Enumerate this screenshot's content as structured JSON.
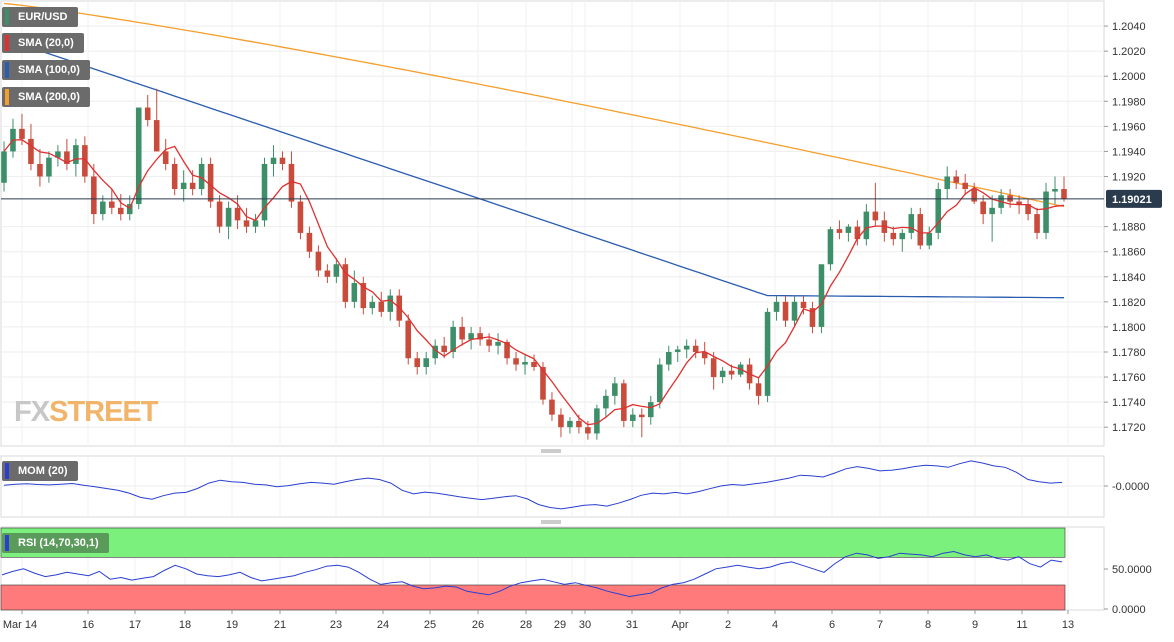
{
  "chart_data": [
    {
      "type": "candlestick",
      "title": "EUR/USD",
      "legend": [
        {
          "label": "SMA (20,0)",
          "color": "#e03030"
        },
        {
          "label": "SMA (100,0)",
          "color": "#2a5db0"
        },
        {
          "label": "SMA (200,0)",
          "color": "#f59e2b"
        }
      ],
      "y_ticks": [
        "1.2040",
        "1.2020",
        "1.2000",
        "1.1980",
        "1.1960",
        "1.1940",
        "1.1920",
        "1.1880",
        "1.1860",
        "1.1840",
        "1.1820",
        "1.1800",
        "1.1780",
        "1.1760",
        "1.1740",
        "1.1720"
      ],
      "ylim": [
        1.1705,
        1.206
      ],
      "current_price": 1.19021,
      "current_price_label": "1.19021",
      "x_ticks": [
        "Mar 14",
        "16",
        "17",
        "18",
        "19",
        "21",
        "23",
        "24",
        "25",
        "26",
        "28",
        "29",
        "30",
        "31",
        "Apr",
        "2",
        "4",
        "6",
        "7",
        "8",
        "9",
        "11",
        "13"
      ],
      "candles_ohlc": [
        [
          1.1915,
          1.1948,
          1.1908,
          1.194
        ],
        [
          1.194,
          1.1966,
          1.1935,
          1.1958
        ],
        [
          1.1958,
          1.197,
          1.1945,
          1.195
        ],
        [
          1.195,
          1.1962,
          1.1925,
          1.193
        ],
        [
          1.193,
          1.1942,
          1.1912,
          1.192
        ],
        [
          1.192,
          1.194,
          1.1915,
          1.1935
        ],
        [
          1.1935,
          1.1945,
          1.1928,
          1.194
        ],
        [
          1.194,
          1.195,
          1.1925,
          1.193
        ],
        [
          1.193,
          1.195,
          1.192,
          1.1945
        ],
        [
          1.1945,
          1.1952,
          1.1915,
          1.192
        ],
        [
          1.192,
          1.193,
          1.1882,
          1.189
        ],
        [
          1.189,
          1.1905,
          1.1885,
          1.19
        ],
        [
          1.19,
          1.191,
          1.189,
          1.1895
        ],
        [
          1.1895,
          1.1906,
          1.1885,
          1.189
        ],
        [
          1.189,
          1.1905,
          1.1885,
          1.1898
        ],
        [
          1.1898,
          1.197,
          1.1894,
          1.1975
        ],
        [
          1.1975,
          1.1985,
          1.196,
          1.1965
        ],
        [
          1.1965,
          1.199,
          1.1955,
          1.194
        ],
        [
          1.194,
          1.195,
          1.1925,
          1.193
        ],
        [
          1.193,
          1.1935,
          1.1905,
          1.191
        ],
        [
          1.191,
          1.1925,
          1.19,
          1.1915
        ],
        [
          1.1915,
          1.1925,
          1.1905,
          1.191
        ],
        [
          1.191,
          1.1935,
          1.1905,
          1.193
        ],
        [
          1.193,
          1.1935,
          1.1895,
          1.19
        ],
        [
          1.19,
          1.1905,
          1.1875,
          1.188
        ],
        [
          1.188,
          1.19,
          1.187,
          1.1895
        ],
        [
          1.1895,
          1.1905,
          1.1878,
          1.1885
        ],
        [
          1.1885,
          1.1895,
          1.1875,
          1.188
        ],
        [
          1.188,
          1.189,
          1.1875,
          1.1885
        ],
        [
          1.1885,
          1.1935,
          1.188,
          1.193
        ],
        [
          1.193,
          1.1945,
          1.192,
          1.1935
        ],
        [
          1.1935,
          1.194,
          1.1925,
          1.193
        ],
        [
          1.193,
          1.194,
          1.1895,
          1.19
        ],
        [
          1.19,
          1.1905,
          1.187,
          1.1875
        ],
        [
          1.1875,
          1.188,
          1.1855,
          1.186
        ],
        [
          1.186,
          1.1865,
          1.184,
          1.1845
        ],
        [
          1.1845,
          1.185,
          1.1835,
          1.184
        ],
        [
          1.184,
          1.1855,
          1.1835,
          1.185
        ],
        [
          1.185,
          1.1855,
          1.1815,
          1.182
        ],
        [
          1.182,
          1.1845,
          1.1815,
          1.1835
        ],
        [
          1.1835,
          1.184,
          1.181,
          1.1815
        ],
        [
          1.1815,
          1.1825,
          1.181,
          1.182
        ],
        [
          1.182,
          1.1828,
          1.1808,
          1.1812
        ],
        [
          1.1812,
          1.183,
          1.1805,
          1.1825
        ],
        [
          1.1825,
          1.183,
          1.18,
          1.1805
        ],
        [
          1.1805,
          1.181,
          1.177,
          1.1775
        ],
        [
          1.1775,
          1.178,
          1.1762,
          1.1768
        ],
        [
          1.1768,
          1.178,
          1.1762,
          1.1775
        ],
        [
          1.1775,
          1.179,
          1.177,
          1.1785
        ],
        [
          1.1785,
          1.1792,
          1.1775,
          1.178
        ],
        [
          1.178,
          1.1805,
          1.1775,
          1.18
        ],
        [
          1.18,
          1.1808,
          1.1785,
          1.179
        ],
        [
          1.179,
          1.18,
          1.1782,
          1.1795
        ],
        [
          1.1795,
          1.18,
          1.1785,
          1.179
        ],
        [
          1.179,
          1.1795,
          1.178,
          1.1785
        ],
        [
          1.1785,
          1.1795,
          1.1778,
          1.1788
        ],
        [
          1.1788,
          1.179,
          1.177,
          1.1775
        ],
        [
          1.1775,
          1.178,
          1.1765,
          1.177
        ],
        [
          1.177,
          1.1778,
          1.1762,
          1.1772
        ],
        [
          1.1772,
          1.1778,
          1.1765,
          1.1768
        ],
        [
          1.1768,
          1.1772,
          1.1738,
          1.1742
        ],
        [
          1.1742,
          1.1748,
          1.1725,
          1.173
        ],
        [
          1.173,
          1.1735,
          1.1712,
          1.172
        ],
        [
          1.172,
          1.1728,
          1.1715,
          1.1725
        ],
        [
          1.1725,
          1.173,
          1.1715,
          1.172
        ],
        [
          1.172,
          1.1725,
          1.171,
          1.1715
        ],
        [
          1.1715,
          1.1738,
          1.171,
          1.1735
        ],
        [
          1.1735,
          1.175,
          1.1728,
          1.1745
        ],
        [
          1.1745,
          1.176,
          1.1738,
          1.1755
        ],
        [
          1.1755,
          1.1758,
          1.172,
          1.1725
        ],
        [
          1.1725,
          1.1735,
          1.172,
          1.173
        ],
        [
          1.173,
          1.1735,
          1.1712,
          1.1728
        ],
        [
          1.1728,
          1.1745,
          1.1722,
          1.174
        ],
        [
          1.174,
          1.1775,
          1.1735,
          1.177
        ],
        [
          1.177,
          1.1785,
          1.1765,
          1.178
        ],
        [
          1.178,
          1.1785,
          1.1772,
          1.1782
        ],
        [
          1.1782,
          1.179,
          1.1775,
          1.1785
        ],
        [
          1.1785,
          1.179,
          1.1775,
          1.178
        ],
        [
          1.178,
          1.1788,
          1.177,
          1.1775
        ],
        [
          1.1775,
          1.178,
          1.175,
          1.176
        ],
        [
          1.176,
          1.1768,
          1.1755,
          1.1765
        ],
        [
          1.1765,
          1.177,
          1.1758,
          1.1762
        ],
        [
          1.1762,
          1.1772,
          1.176,
          1.177
        ],
        [
          1.177,
          1.1775,
          1.175,
          1.1755
        ],
        [
          1.1755,
          1.176,
          1.1738,
          1.1745
        ],
        [
          1.1745,
          1.1815,
          1.174,
          1.1812
        ],
        [
          1.1812,
          1.1825,
          1.1805,
          1.182
        ],
        [
          1.182,
          1.1825,
          1.18,
          1.1805
        ],
        [
          1.1805,
          1.1825,
          1.18,
          1.182
        ],
        [
          1.182,
          1.1825,
          1.181,
          1.1815
        ],
        [
          1.1815,
          1.182,
          1.1795,
          1.18
        ],
        [
          1.18,
          1.1845,
          1.1795,
          1.185
        ],
        [
          1.185,
          1.188,
          1.1845,
          1.1878
        ],
        [
          1.1878,
          1.1885,
          1.187,
          1.1875
        ],
        [
          1.1875,
          1.1882,
          1.1868,
          1.188
        ],
        [
          1.188,
          1.1885,
          1.1865,
          1.187
        ],
        [
          1.187,
          1.1898,
          1.1865,
          1.1892
        ],
        [
          1.1892,
          1.1915,
          1.188,
          1.1885
        ],
        [
          1.1885,
          1.1892,
          1.1868,
          1.1875
        ],
        [
          1.1875,
          1.188,
          1.1865,
          1.187
        ],
        [
          1.187,
          1.1878,
          1.186,
          1.1875
        ],
        [
          1.1875,
          1.1895,
          1.187,
          1.189
        ],
        [
          1.189,
          1.1895,
          1.1862,
          1.1865
        ],
        [
          1.1865,
          1.188,
          1.1862,
          1.1875
        ],
        [
          1.1875,
          1.1915,
          1.187,
          1.191
        ],
        [
          1.191,
          1.1928,
          1.1902,
          1.192
        ],
        [
          1.192,
          1.1925,
          1.191,
          1.1915
        ],
        [
          1.1915,
          1.1922,
          1.1905,
          1.191
        ],
        [
          1.191,
          1.1915,
          1.1898,
          1.19
        ],
        [
          1.19,
          1.1905,
          1.1882,
          1.189
        ],
        [
          1.189,
          1.1905,
          1.1868,
          1.1895
        ],
        [
          1.1895,
          1.191,
          1.189,
          1.1905
        ],
        [
          1.1905,
          1.191,
          1.1895,
          1.19
        ],
        [
          1.19,
          1.1905,
          1.189,
          1.1898
        ],
        [
          1.1898,
          1.1902,
          1.1885,
          1.189
        ],
        [
          1.189,
          1.1895,
          1.187,
          1.1875
        ],
        [
          1.1875,
          1.1915,
          1.187,
          1.1908
        ],
        [
          1.1908,
          1.192,
          1.1898,
          1.191
        ],
        [
          1.191,
          1.192,
          1.19,
          1.1902
        ]
      ]
    },
    {
      "type": "line",
      "title": "MOM (20)",
      "y_ticks": [
        "-0.0000"
      ],
      "values": [
        0.44,
        0.47,
        0.48,
        0.46,
        0.45,
        0.47,
        0.49,
        0.44,
        0.4,
        0.35,
        0.3,
        0.22,
        0.1,
        0.05,
        0.15,
        0.22,
        0.24,
        0.35,
        0.5,
        0.58,
        0.54,
        0.52,
        0.47,
        0.45,
        0.4,
        0.43,
        0.48,
        0.52,
        0.5,
        0.47,
        0.54,
        0.6,
        0.64,
        0.6,
        0.5,
        0.3,
        0.2,
        0.25,
        0.22,
        0.17,
        0.12,
        0.08,
        0.04,
        0.08,
        0.12,
        0.15,
        0.06,
        -0.1,
        -0.18,
        -0.22,
        -0.17,
        -0.12,
        -0.1,
        -0.14,
        -0.06,
        0.04,
        0.16,
        0.22,
        0.2,
        0.24,
        0.2,
        0.26,
        0.34,
        0.42,
        0.46,
        0.44,
        0.48,
        0.52,
        0.58,
        0.64,
        0.72,
        0.7,
        0.67,
        0.78,
        0.9,
        0.96,
        0.91,
        0.84,
        0.86,
        0.9,
        0.96,
        1.0,
        0.98,
        0.94,
        1.04,
        1.12,
        1.06,
        0.98,
        0.94,
        0.8,
        0.6,
        0.54,
        0.5,
        0.52
      ]
    },
    {
      "type": "line",
      "title": "RSI (14,70,30,1)",
      "y_ticks": [
        "50.0000",
        "0.0000"
      ],
      "ylim": [
        0,
        100
      ],
      "values": [
        49,
        53,
        56,
        51,
        47,
        49,
        52,
        50,
        48,
        53,
        44,
        46,
        43,
        45,
        47,
        54,
        60,
        56,
        50,
        48,
        47,
        49,
        52,
        46,
        42,
        44,
        46,
        48,
        52,
        55,
        59,
        60,
        58,
        52,
        44,
        38,
        40,
        41,
        36,
        33,
        34,
        36,
        35,
        30,
        28,
        26,
        30,
        36,
        40,
        42,
        44,
        41,
        38,
        40,
        37,
        34,
        30,
        27,
        24,
        26,
        28,
        34,
        38,
        40,
        44,
        50,
        56,
        58,
        60,
        58,
        56,
        58,
        62,
        64,
        60,
        56,
        52,
        62,
        70,
        74,
        72,
        68,
        70,
        74,
        73,
        72,
        70,
        74,
        76,
        72,
        70,
        72,
        68,
        66,
        70,
        62,
        58,
        66,
        64
      ]
    }
  ]
}
